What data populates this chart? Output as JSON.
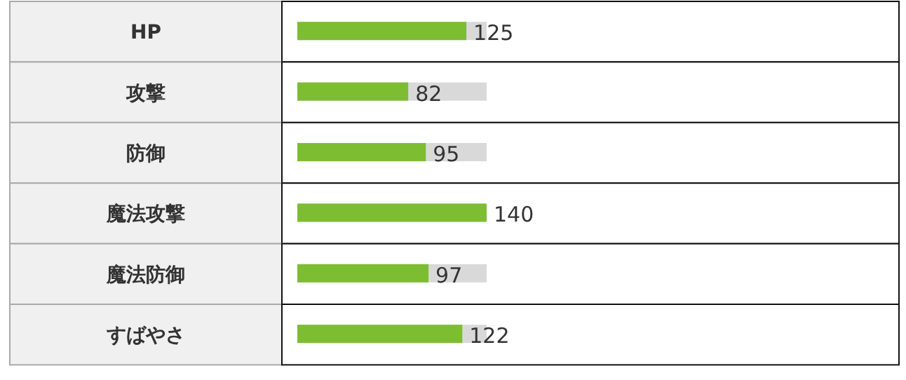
{
  "chart_data": {
    "type": "bar",
    "orientation": "horizontal",
    "categories": [
      "HP",
      "攻撃",
      "防御",
      "魔法攻撃",
      "魔法防御",
      "すばやさ"
    ],
    "values": [
      125,
      82,
      95,
      140,
      97,
      122
    ],
    "data_labels": true,
    "color": "#7dbd32"
  }
}
